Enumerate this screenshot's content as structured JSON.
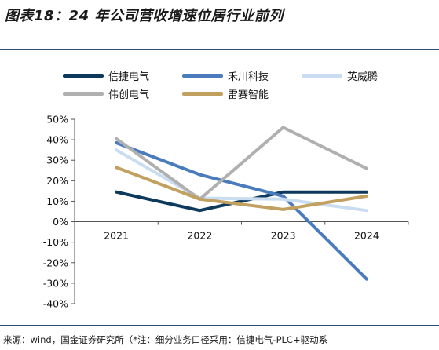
{
  "title": "图表18：24 年公司营收增速位居行业前列",
  "source": "来源：wind，国金证券研究所（*注：细分业务口径采用：信捷电气-PLC+驱动系",
  "chart_data": {
    "type": "line",
    "x": [
      "2021",
      "2022",
      "2023",
      "2024"
    ],
    "yticks": [
      "50%",
      "40%",
      "30%",
      "20%",
      "10%",
      "0%",
      "-10%",
      "-20%",
      "-30%",
      "-40%"
    ],
    "ylim": [
      -40,
      50
    ],
    "grid": false,
    "legend_position": "top",
    "series": [
      {
        "name": "信捷电气",
        "color": "#0d3a5c",
        "values": [
          14.5,
          5.5,
          14.5,
          14.5
        ]
      },
      {
        "name": "禾川科技",
        "color": "#4a7cbd",
        "values": [
          38.5,
          23,
          12.5,
          -28
        ]
      },
      {
        "name": "英威腾",
        "color": "#c9dcf0",
        "values": [
          35,
          11.5,
          11,
          5.5
        ]
      },
      {
        "name": "伟创电气",
        "color": "#b0b0b0",
        "values": [
          40.5,
          11,
          46,
          26
        ]
      },
      {
        "name": "雷赛智能",
        "color": "#c2a060",
        "values": [
          26.5,
          11,
          6,
          12.5
        ]
      }
    ]
  }
}
